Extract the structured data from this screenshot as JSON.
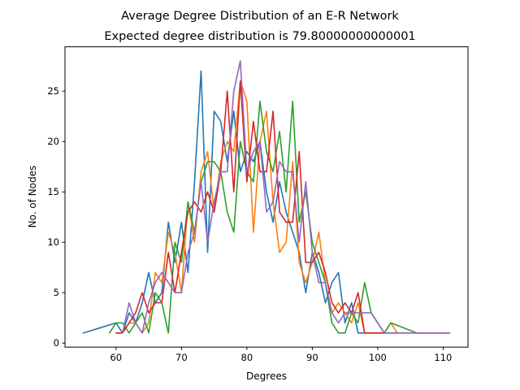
{
  "chart_data": {
    "type": "line",
    "title": "Average Degree Distribution of an E-R Network",
    "subtitle": "Expected degree distribution is 79.80000000000001",
    "xlabel": "Degrees",
    "ylabel": "No. of Nodes",
    "xlim": [
      52.2,
      113.8
    ],
    "ylim": [
      -0.4,
      29.4
    ],
    "xticks": [
      60,
      70,
      80,
      90,
      100,
      110
    ],
    "yticks": [
      0,
      5,
      10,
      15,
      20,
      25
    ],
    "grid": false,
    "legend": "none",
    "series": [
      {
        "color": "#1f77b4",
        "points": [
          [
            55,
            1
          ],
          [
            60,
            2
          ],
          [
            61,
            1
          ],
          [
            62,
            3
          ],
          [
            63,
            2
          ],
          [
            64,
            4
          ],
          [
            65,
            7
          ],
          [
            66,
            4
          ],
          [
            67,
            5
          ],
          [
            68,
            12
          ],
          [
            69,
            8
          ],
          [
            70,
            12
          ],
          [
            71,
            7
          ],
          [
            72,
            16
          ],
          [
            73,
            27
          ],
          [
            74,
            9
          ],
          [
            75,
            23
          ],
          [
            76,
            22
          ],
          [
            77,
            18
          ],
          [
            78,
            23
          ],
          [
            79,
            17
          ],
          [
            80,
            19
          ],
          [
            81,
            18
          ],
          [
            82,
            20
          ],
          [
            83,
            15
          ],
          [
            84,
            12
          ],
          [
            85,
            16
          ],
          [
            86,
            13
          ],
          [
            87,
            11
          ],
          [
            88,
            9
          ],
          [
            89,
            5
          ],
          [
            90,
            9
          ],
          [
            91,
            7
          ],
          [
            92,
            4
          ],
          [
            93,
            6
          ],
          [
            94,
            7
          ],
          [
            95,
            2
          ],
          [
            96,
            4
          ],
          [
            97,
            1
          ],
          [
            98,
            1
          ],
          [
            99,
            1
          ],
          [
            100,
            1
          ],
          [
            101,
            1
          ],
          [
            102,
            1
          ],
          [
            103,
            1
          ]
        ]
      },
      {
        "color": "#ff7f0e",
        "points": [
          [
            60,
            1
          ],
          [
            61,
            1
          ],
          [
            62,
            2
          ],
          [
            63,
            2
          ],
          [
            64,
            1
          ],
          [
            65,
            2
          ],
          [
            66,
            7
          ],
          [
            67,
            6
          ],
          [
            68,
            11
          ],
          [
            69,
            9
          ],
          [
            70,
            5
          ],
          [
            71,
            14
          ],
          [
            72,
            10
          ],
          [
            73,
            17
          ],
          [
            74,
            19
          ],
          [
            75,
            13
          ],
          [
            76,
            18
          ],
          [
            77,
            20
          ],
          [
            78,
            19
          ],
          [
            79,
            26
          ],
          [
            80,
            24
          ],
          [
            81,
            11
          ],
          [
            82,
            20
          ],
          [
            83,
            23
          ],
          [
            84,
            14
          ],
          [
            85,
            9
          ],
          [
            86,
            10
          ],
          [
            87,
            18
          ],
          [
            88,
            8
          ],
          [
            89,
            6
          ],
          [
            90,
            8
          ],
          [
            91,
            11
          ],
          [
            92,
            6
          ],
          [
            93,
            3
          ],
          [
            94,
            4
          ],
          [
            95,
            3
          ],
          [
            96,
            2
          ],
          [
            97,
            4
          ],
          [
            98,
            1
          ],
          [
            99,
            1
          ],
          [
            100,
            1
          ],
          [
            101,
            1
          ],
          [
            102,
            2
          ],
          [
            103,
            1
          ]
        ]
      },
      {
        "color": "#2ca02c",
        "points": [
          [
            59,
            1
          ],
          [
            60,
            2
          ],
          [
            61,
            2
          ],
          [
            62,
            1
          ],
          [
            63,
            2
          ],
          [
            64,
            3
          ],
          [
            65,
            1
          ],
          [
            66,
            5
          ],
          [
            67,
            4
          ],
          [
            68,
            1
          ],
          [
            69,
            10
          ],
          [
            70,
            8
          ],
          [
            71,
            14
          ],
          [
            72,
            11
          ],
          [
            73,
            16
          ],
          [
            74,
            18
          ],
          [
            75,
            18
          ],
          [
            76,
            17
          ],
          [
            77,
            13
          ],
          [
            78,
            11
          ],
          [
            79,
            20
          ],
          [
            80,
            17
          ],
          [
            81,
            16
          ],
          [
            82,
            24
          ],
          [
            83,
            19
          ],
          [
            84,
            17
          ],
          [
            85,
            21
          ],
          [
            86,
            15
          ],
          [
            87,
            24
          ],
          [
            88,
            12
          ],
          [
            89,
            15
          ],
          [
            90,
            10
          ],
          [
            91,
            8
          ],
          [
            92,
            6
          ],
          [
            93,
            2
          ],
          [
            94,
            1
          ],
          [
            95,
            1
          ],
          [
            96,
            3
          ],
          [
            97,
            2
          ],
          [
            98,
            6
          ],
          [
            99,
            3
          ],
          [
            100,
            2
          ],
          [
            101,
            1
          ],
          [
            102,
            2
          ],
          [
            106,
            1
          ],
          [
            111,
            1
          ]
        ]
      },
      {
        "color": "#d62728",
        "points": [
          [
            60,
            1
          ],
          [
            61,
            1
          ],
          [
            62,
            2
          ],
          [
            63,
            3
          ],
          [
            64,
            5
          ],
          [
            65,
            3
          ],
          [
            66,
            4
          ],
          [
            67,
            4
          ],
          [
            68,
            9
          ],
          [
            69,
            5
          ],
          [
            70,
            9
          ],
          [
            71,
            13
          ],
          [
            72,
            14
          ],
          [
            73,
            13
          ],
          [
            74,
            15
          ],
          [
            75,
            13
          ],
          [
            76,
            17
          ],
          [
            77,
            25
          ],
          [
            78,
            15
          ],
          [
            79,
            26
          ],
          [
            80,
            16
          ],
          [
            81,
            22
          ],
          [
            82,
            17
          ],
          [
            83,
            17
          ],
          [
            84,
            23
          ],
          [
            85,
            13
          ],
          [
            86,
            12
          ],
          [
            87,
            12
          ],
          [
            88,
            19
          ],
          [
            89,
            8
          ],
          [
            90,
            8
          ],
          [
            91,
            9
          ],
          [
            92,
            7
          ],
          [
            93,
            4
          ],
          [
            94,
            3
          ],
          [
            95,
            4
          ],
          [
            96,
            3
          ],
          [
            97,
            5
          ],
          [
            98,
            1
          ],
          [
            99,
            1
          ],
          [
            100,
            1
          ],
          [
            101,
            1
          ],
          [
            102,
            1
          ],
          [
            103,
            1
          ],
          [
            104,
            1
          ],
          [
            105,
            1
          ],
          [
            106,
            1
          ],
          [
            111,
            1
          ]
        ]
      },
      {
        "color": "#9467bd",
        "points": [
          [
            61,
            1
          ],
          [
            62,
            4
          ],
          [
            63,
            2
          ],
          [
            64,
            1
          ],
          [
            65,
            4
          ],
          [
            66,
            6
          ],
          [
            67,
            7
          ],
          [
            68,
            6
          ],
          [
            69,
            5
          ],
          [
            70,
            5
          ],
          [
            71,
            9
          ],
          [
            72,
            11
          ],
          [
            73,
            16
          ],
          [
            74,
            10
          ],
          [
            75,
            14
          ],
          [
            76,
            17
          ],
          [
            77,
            17
          ],
          [
            78,
            25
          ],
          [
            79,
            28
          ],
          [
            80,
            17
          ],
          [
            81,
            19
          ],
          [
            82,
            20
          ],
          [
            83,
            13
          ],
          [
            84,
            14
          ],
          [
            85,
            18
          ],
          [
            86,
            17
          ],
          [
            87,
            17
          ],
          [
            88,
            10
          ],
          [
            89,
            16
          ],
          [
            90,
            9
          ],
          [
            91,
            6
          ],
          [
            92,
            6
          ],
          [
            93,
            3
          ],
          [
            94,
            2
          ],
          [
            95,
            3
          ],
          [
            96,
            3
          ],
          [
            97,
            3
          ],
          [
            98,
            3
          ],
          [
            99,
            3
          ],
          [
            100,
            2
          ],
          [
            101,
            1
          ],
          [
            102,
            1
          ],
          [
            103,
            1
          ],
          [
            104,
            1
          ],
          [
            105,
            1
          ],
          [
            106,
            1
          ],
          [
            107,
            1
          ],
          [
            111,
            1
          ]
        ]
      }
    ]
  }
}
